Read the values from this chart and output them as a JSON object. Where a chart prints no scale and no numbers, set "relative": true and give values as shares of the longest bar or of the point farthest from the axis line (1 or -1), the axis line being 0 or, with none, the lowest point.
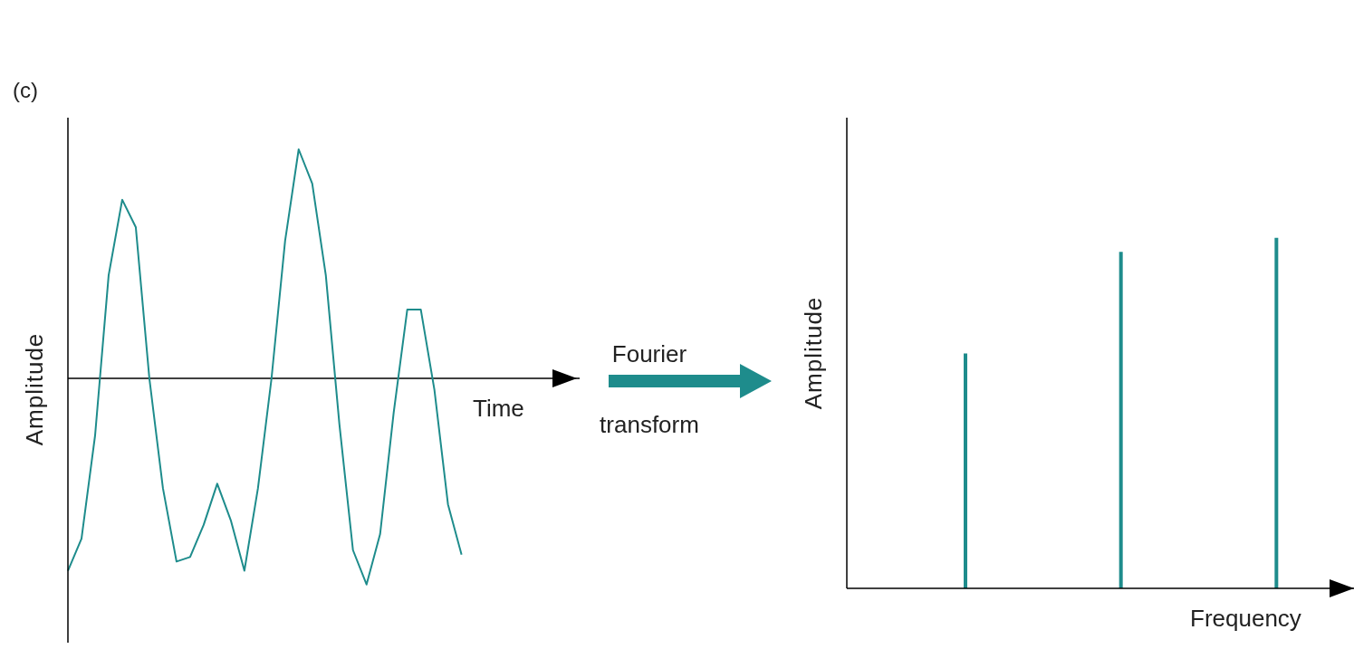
{
  "chart_data": [
    {
      "type": "line",
      "relative": true,
      "xlabel": "Time",
      "ylabel": "Amplitude",
      "annotations": [
        "(c)",
        "Fourier transform"
      ],
      "categories": [
        null,
        null,
        null,
        null,
        null,
        null,
        null,
        null,
        null,
        null,
        null,
        null,
        null,
        null,
        null,
        null,
        null,
        null,
        null,
        null,
        null,
        null,
        null,
        null,
        null,
        null,
        null,
        null,
        null,
        null
      ],
      "series": [
        {
          "color": "#1e8c8c",
          "values": [
            -0.84,
            -0.7,
            -0.25,
            0.45,
            0.78,
            0.66,
            0,
            -0.48,
            -0.8,
            -0.78,
            -0.64,
            -0.46,
            -0.62,
            -0.84,
            -0.48,
            0,
            0.6,
            1,
            0.85,
            0.45,
            -0.2,
            -0.75,
            -0.9,
            -0.68,
            -0.15,
            0.3,
            0.3,
            -0.05,
            -0.55,
            -0.77
          ]
        }
      ],
      "marker": "none",
      "line_style": "solid",
      "grid": false,
      "legend": false
    },
    {
      "type": "bar",
      "relative": true,
      "xlabel": "Frequency",
      "ylabel": "Amplitude",
      "categories": [
        null,
        null,
        null
      ],
      "series": [
        {
          "color": "#1e8c8c",
          "values": [
            0.67,
            0.96,
            1
          ]
        }
      ],
      "grid": false,
      "legend": false
    }
  ]
}
